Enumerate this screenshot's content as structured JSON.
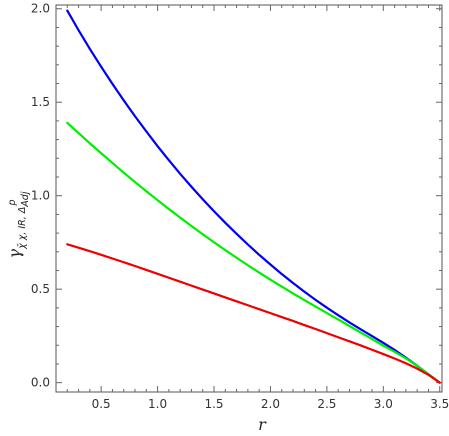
{
  "chart_data": {
    "type": "line",
    "title": "",
    "xlabel": "r",
    "ylabel": {
      "main": "γ",
      "sub": "χ̄ χ, IR, Δ",
      "subsub": "Adj",
      "sup": "p"
    },
    "xlim": [
      0.1,
      3.52
    ],
    "ylim": [
      -0.05,
      2.02
    ],
    "x_major_ticks": [
      0.5,
      1.0,
      1.5,
      2.0,
      2.5,
      3.0,
      3.5
    ],
    "x_tick_labels": [
      "0.5",
      "1.0",
      "1.5",
      "2.0",
      "2.5",
      "3.0",
      "3.5"
    ],
    "y_major_ticks": [
      0.0,
      0.5,
      1.0,
      1.5,
      2.0
    ],
    "y_tick_labels": [
      "0.0",
      "0.5",
      "1.0",
      "1.5",
      "2.0"
    ],
    "grid": false,
    "legend": "none",
    "series": [
      {
        "color": "#0000ee",
        "x": [
          0.2,
          0.3,
          0.4,
          0.5,
          0.6,
          0.7,
          0.8,
          0.9,
          1.0,
          1.1,
          1.2,
          1.3,
          1.4,
          1.5,
          1.6,
          1.7,
          1.8,
          1.9,
          2.0,
          2.1,
          2.2,
          2.3,
          2.4,
          2.5,
          2.6,
          2.7,
          2.8,
          2.9,
          3.0,
          3.1,
          3.2,
          3.3,
          3.4,
          3.5
        ],
        "y": [
          1.99,
          1.885,
          1.785,
          1.69,
          1.598,
          1.51,
          1.425,
          1.344,
          1.265,
          1.19,
          1.117,
          1.048,
          0.981,
          0.917,
          0.855,
          0.796,
          0.739,
          0.684,
          0.632,
          0.581,
          0.533,
          0.487,
          0.443,
          0.401,
          0.361,
          0.322,
          0.285,
          0.249,
          0.213,
          0.175,
          0.134,
          0.09,
          0.045,
          0.0
        ]
      },
      {
        "color": "#00ee00",
        "x": [
          0.2,
          0.3,
          0.4,
          0.5,
          0.6,
          0.7,
          0.8,
          0.9,
          1.0,
          1.1,
          1.2,
          1.3,
          1.4,
          1.5,
          1.6,
          1.7,
          1.8,
          1.9,
          2.0,
          2.1,
          2.2,
          2.3,
          2.4,
          2.5,
          2.6,
          2.7,
          2.8,
          2.9,
          3.0,
          3.1,
          3.2,
          3.3,
          3.4,
          3.5
        ],
        "y": [
          1.39,
          1.335,
          1.28,
          1.227,
          1.175,
          1.123,
          1.073,
          1.024,
          0.976,
          0.929,
          0.883,
          0.838,
          0.794,
          0.751,
          0.709,
          0.668,
          0.628,
          0.589,
          0.551,
          0.514,
          0.477,
          0.442,
          0.407,
          0.372,
          0.338,
          0.303,
          0.268,
          0.233,
          0.198,
          0.165,
          0.13,
          0.09,
          0.045,
          0.0
        ]
      },
      {
        "color": "#ee0000",
        "x": [
          0.2,
          0.3,
          0.4,
          0.5,
          0.6,
          0.7,
          0.8,
          0.9,
          1.0,
          1.1,
          1.2,
          1.3,
          1.4,
          1.5,
          1.6,
          1.7,
          1.8,
          1.9,
          2.0,
          2.1,
          2.2,
          2.3,
          2.4,
          2.5,
          2.6,
          2.7,
          2.8,
          2.9,
          3.0,
          3.1,
          3.2,
          3.3,
          3.4,
          3.5
        ],
        "y": [
          0.74,
          0.722,
          0.703,
          0.684,
          0.664,
          0.644,
          0.624,
          0.603,
          0.582,
          0.561,
          0.54,
          0.519,
          0.498,
          0.477,
          0.456,
          0.435,
          0.414,
          0.393,
          0.372,
          0.351,
          0.33,
          0.308,
          0.287,
          0.265,
          0.243,
          0.221,
          0.199,
          0.176,
          0.153,
          0.129,
          0.104,
          0.075,
          0.042,
          0.0
        ]
      }
    ]
  }
}
